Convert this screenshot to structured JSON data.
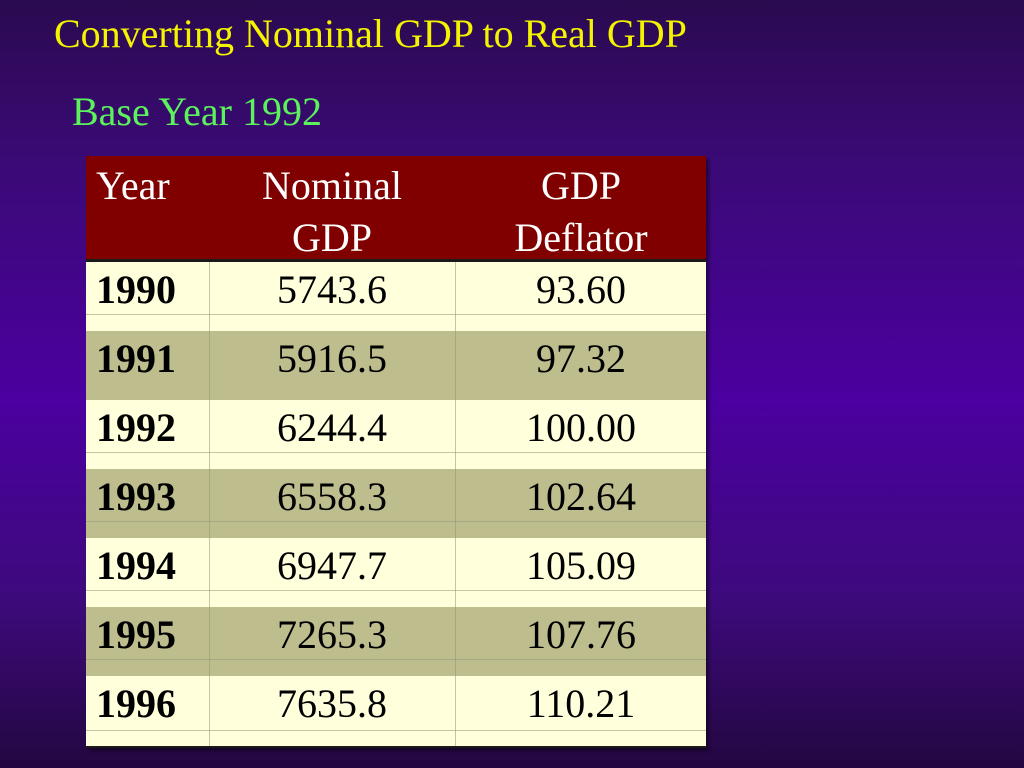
{
  "slide": {
    "title": "Converting Nominal GDP to Real GDP",
    "subtitle": "Base Year 1992"
  },
  "table": {
    "headers": [
      {
        "line1": "Year",
        "line2": ""
      },
      {
        "line1": "Nominal",
        "line2": "GDP"
      },
      {
        "line1": "GDP",
        "line2": "Deflator"
      }
    ],
    "rows": [
      [
        "1990",
        "5743.6",
        "93.60"
      ],
      [
        "1991",
        "5916.5",
        "97.32"
      ],
      [
        "1992",
        "6244.4",
        "100.00"
      ],
      [
        "1993",
        "6558.3",
        "102.64"
      ],
      [
        "1994",
        "6947.7",
        "105.09"
      ],
      [
        "1995",
        "7265.3",
        "107.76"
      ],
      [
        "1996",
        "7635.8",
        "110.21"
      ]
    ]
  },
  "colors": {
    "title": "#f4f400",
    "subtitle": "#5cf25c",
    "header_bg": "#800000",
    "row_light": "#ffffdc",
    "row_dark": "#bdbd8e"
  }
}
